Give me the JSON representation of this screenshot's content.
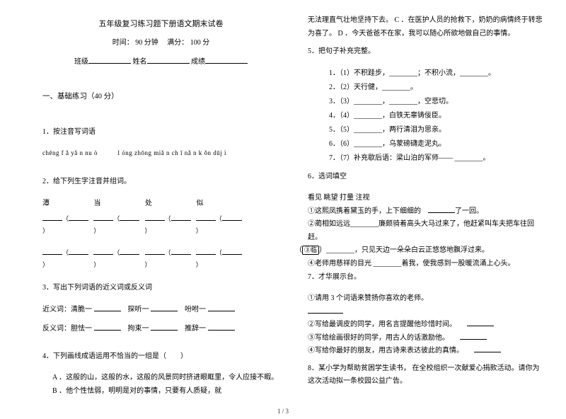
{
  "header": {
    "title": "五年级复习练习题下册语文期末试卷",
    "time_label": "时间：",
    "time_value": "90 分钟",
    "score_label": "满分：",
    "score_value": "100 分",
    "class_label": "班级",
    "name_label": "姓名",
    "grade_label": "成绩"
  },
  "section1": {
    "title": "一、基础练习（40 分）"
  },
  "q1": {
    "label": "1．按注音写词语",
    "pinyin1": "chēng f ǎ yǎ n nu ò",
    "pinyin2": "l óng zhōng   miǎ n ch ǐ nǎ n k ǒn   dūj ì"
  },
  "q2": {
    "label": "2．给下列生字注音并组词。",
    "c1": "潭",
    "c2": "当",
    "c3": "处",
    "c4": "似"
  },
  "q3": {
    "label": "3．写出下列词语的近义词或反义词",
    "syn_label": "近义词：",
    "syn1": "清脆一",
    "syn2": "探听一",
    "syn3": "吩咐一",
    "ant_label": "反义词：",
    "ant1": "胆怯一",
    "ant2": "拘束一",
    "ant3": "推辞一"
  },
  "q4": {
    "label": "4．下列画线成语运用不恰当的一组是（　　）",
    "opt_a": "A ．这般的山，这般的水，这般的风景同时挤进眼眶里，令人应接不暇。",
    "opt_b": "B ．他个性怯弱，明明是对的事情，只要有人质疑，就"
  },
  "right_top": {
    "line1": "无法理直气壮地坚持下去。",
    "opt_c": "C ．在医护人员的抢救下，奶奶的病情终于转悲为喜了。",
    "opt_d": "D ．今天爸爸不在家，我可以随心所欲地做自己的事情。"
  },
  "q5": {
    "label": "5．把句子补充完整。",
    "items": [
      "（1）不积跬步，________；不积小流，________。",
      "（2）天行健，________。",
      "（3）________，________，空悲切。",
      "（4）________，白铁无辜铸佞臣。",
      "（5）________，两行清泪为思亲。",
      "（6）________，乌蒙磅礴走泥丸。",
      "（7）补充歇后语：梁山泊的军师——  ________。"
    ]
  },
  "q6": {
    "label": "6．选词填空",
    "words": "看见  眺望  打量  注视",
    "line1a": "①这熙凤携着黛玉的手，上下细细的",
    "line1b": "了一回。",
    "line2": "②蔺相如远远________廉颇骑着高头大马过来了，他赶紧叫车夫把车往回赶。",
    "line3a": "（",
    "line3word": "③临",
    "line3b": "）________，只见天边一朵朵白云正悠悠地飘浮过来。",
    "line4": "④老师用慈祥的目光 ________着我，使我感到一股暖流涌上心头。"
  },
  "q7": {
    "label": "7．才华展示台。",
    "line1": "①请用 3 个词语来赞扬你喜欢的老师。",
    "line2": "②写给最调皮的同学，用名言提醒他珍惜时间。",
    "line3": "③写给绘画很好的同学，用古人的话激励他。",
    "line4": "④写给你最好的朋友，用古诗来表达彼此的真情。"
  },
  "q8": {
    "label": "8．某小学为帮助贫困学生读书，  在全校组织一次献爱心捐款活动。请你为这次活动拟一条校园公益广告。"
  },
  "footer": {
    "pagenum": "1 / 3"
  }
}
